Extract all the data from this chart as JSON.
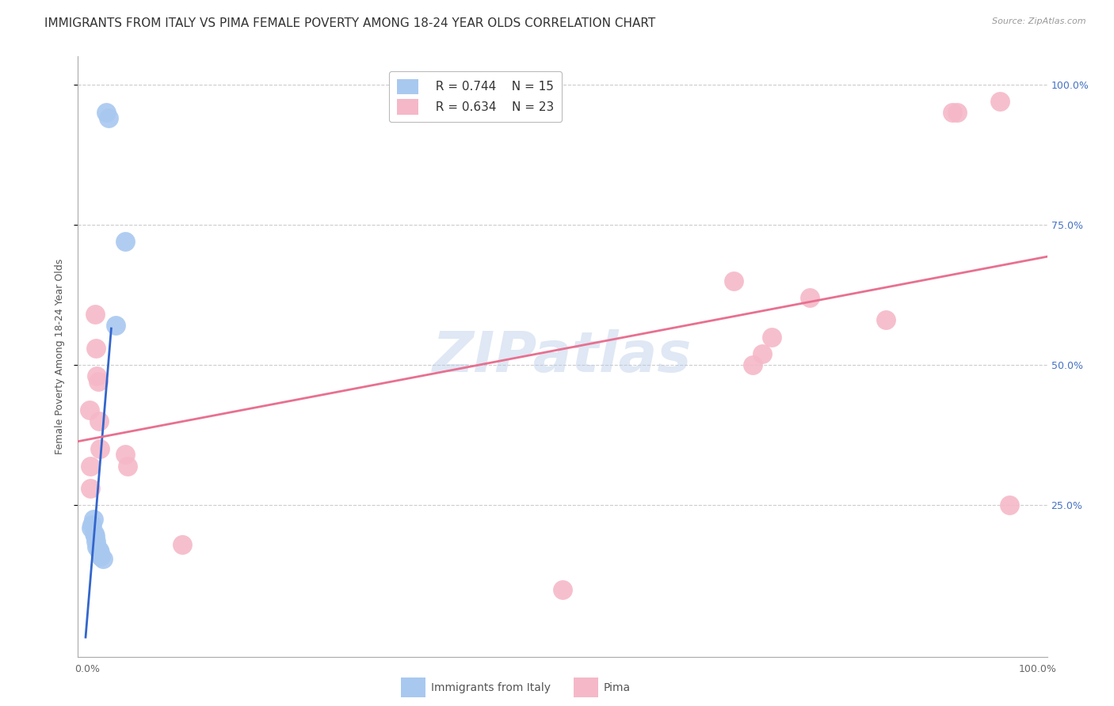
{
  "title": "IMMIGRANTS FROM ITALY VS PIMA FEMALE POVERTY AMONG 18-24 YEAR OLDS CORRELATION CHART",
  "source": "Source: ZipAtlas.com",
  "ylabel": "Female Poverty Among 18-24 Year Olds",
  "series1_label": "Immigrants from Italy",
  "series2_label": "Pima",
  "series1_R": 0.744,
  "series1_N": 15,
  "series2_R": 0.634,
  "series2_N": 23,
  "series1_color": "#a8c8f0",
  "series2_color": "#f5b8c8",
  "series1_line_color": "#3366cc",
  "series2_line_color": "#e87090",
  "background_color": "#ffffff",
  "series1_points": [
    [
      0.02,
      0.95
    ],
    [
      0.022,
      0.94
    ],
    [
      0.04,
      0.72
    ],
    [
      0.03,
      0.57
    ],
    [
      0.004,
      0.21
    ],
    [
      0.005,
      0.215
    ],
    [
      0.006,
      0.225
    ],
    [
      0.007,
      0.2
    ],
    [
      0.008,
      0.195
    ],
    [
      0.009,
      0.185
    ],
    [
      0.01,
      0.175
    ],
    [
      0.012,
      0.17
    ],
    [
      0.013,
      0.165
    ],
    [
      0.014,
      0.158
    ],
    [
      0.016,
      0.155
    ]
  ],
  "series2_points": [
    [
      0.008,
      0.59
    ],
    [
      0.009,
      0.53
    ],
    [
      0.01,
      0.48
    ],
    [
      0.011,
      0.47
    ],
    [
      0.012,
      0.4
    ],
    [
      0.013,
      0.35
    ],
    [
      0.04,
      0.34
    ],
    [
      0.042,
      0.32
    ],
    [
      0.1,
      0.18
    ],
    [
      0.5,
      0.1
    ],
    [
      0.68,
      0.65
    ],
    [
      0.7,
      0.5
    ],
    [
      0.72,
      0.55
    ],
    [
      0.76,
      0.62
    ],
    [
      0.84,
      0.58
    ],
    [
      0.91,
      0.95
    ],
    [
      0.915,
      0.95
    ],
    [
      0.96,
      0.97
    ],
    [
      0.97,
      0.25
    ],
    [
      0.71,
      0.52
    ],
    [
      0.002,
      0.42
    ],
    [
      0.003,
      0.32
    ],
    [
      0.003,
      0.28
    ]
  ],
  "xlim": [
    0.0,
    1.0
  ],
  "ylim": [
    0.0,
    1.0
  ],
  "xticks": [
    0.0,
    0.25,
    0.5,
    0.75,
    1.0
  ],
  "xtick_labels": [
    "0.0%",
    "",
    "",
    "",
    "100.0%"
  ],
  "ytick_positions": [
    0.25,
    0.5,
    0.75,
    1.0
  ],
  "ytick_labels_right": [
    "25.0%",
    "50.0%",
    "75.0%",
    "100.0%"
  ],
  "grid_color": "#cccccc",
  "title_fontsize": 11,
  "axis_label_fontsize": 9,
  "tick_fontsize": 9,
  "legend_fontsize": 11
}
